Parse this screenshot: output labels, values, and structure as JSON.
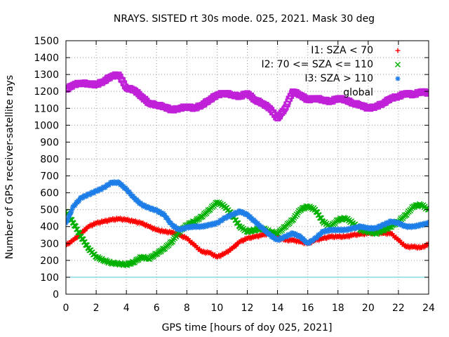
{
  "chart_data": {
    "type": "scatter",
    "title": "NRAYS. SISTED rt 30s mode. 025, 2021. Mask 30 deg",
    "xlabel": "GPS time [hours of doy 025, 2021]",
    "ylabel": "Number of GPS receiver-satellite rays",
    "xlim": [
      0,
      24
    ],
    "ylim": [
      0,
      1500
    ],
    "xticks": [
      0,
      2,
      4,
      6,
      8,
      10,
      12,
      14,
      16,
      18,
      20,
      22,
      24
    ],
    "yticks": [
      0,
      100,
      200,
      300,
      400,
      500,
      600,
      700,
      800,
      900,
      1000,
      1100,
      1200,
      1300,
      1400,
      1500
    ],
    "grid": true,
    "legend_position": "top-right",
    "threshold_line": {
      "y": 100,
      "color": "#4fd1e0"
    },
    "series": [
      {
        "name": "I1: SZA < 70",
        "marker": "+",
        "color": "#ff0000",
        "x": [
          0,
          0.5,
          1,
          1.5,
          2,
          2.5,
          3,
          3.5,
          4,
          4.5,
          5,
          5.5,
          6,
          6.5,
          7,
          7.5,
          8,
          8.5,
          9,
          9.5,
          10,
          10.5,
          11,
          11.5,
          12,
          12.5,
          13,
          13.5,
          14,
          14.5,
          15,
          15.5,
          16,
          16.5,
          17,
          17.5,
          18,
          18.5,
          19,
          19.5,
          20,
          20.5,
          21,
          21.5,
          22,
          22.5,
          23,
          23.5,
          24
        ],
        "y": [
          290,
          320,
          360,
          400,
          420,
          430,
          440,
          445,
          440,
          430,
          420,
          400,
          380,
          370,
          365,
          350,
          330,
          290,
          250,
          245,
          220,
          240,
          270,
          310,
          330,
          340,
          350,
          360,
          340,
          320,
          320,
          310,
          300,
          320,
          330,
          340,
          340,
          340,
          350,
          355,
          360,
          365,
          360,
          360,
          320,
          280,
          280,
          275,
          295
        ]
      },
      {
        "name": "I2: 70 <= SZA <= 110",
        "marker": "x",
        "color": "#00b000",
        "x": [
          0,
          0.5,
          1,
          1.5,
          2,
          2.5,
          3,
          3.5,
          4,
          4.5,
          5,
          5.5,
          6,
          6.5,
          7,
          7.5,
          8,
          8.5,
          9,
          9.5,
          10,
          10.5,
          11,
          11.5,
          12,
          12.5,
          13,
          13.5,
          14,
          14.5,
          15,
          15.5,
          16,
          16.5,
          17,
          17.5,
          18,
          18.5,
          19,
          19.5,
          20,
          20.5,
          21,
          21.5,
          22,
          22.5,
          23,
          23.5,
          24
        ],
        "y": [
          490,
          420,
          340,
          270,
          220,
          200,
          185,
          180,
          175,
          190,
          220,
          210,
          240,
          270,
          310,
          370,
          410,
          430,
          460,
          500,
          545,
          520,
          470,
          400,
          370,
          380,
          390,
          370,
          360,
          400,
          440,
          500,
          520,
          500,
          430,
          400,
          440,
          450,
          420,
          380,
          370,
          360,
          380,
          400,
          430,
          470,
          520,
          530,
          500
        ]
      },
      {
        "name": "I3: SZA > 110",
        "marker": "*",
        "color": "#1e7ee8",
        "x": [
          0,
          0.5,
          1,
          1.5,
          2,
          2.5,
          3,
          3.5,
          4,
          4.5,
          5,
          5.5,
          6,
          6.5,
          7,
          7.5,
          8,
          8.5,
          9,
          9.5,
          10,
          10.5,
          11,
          11.5,
          12,
          12.5,
          13,
          13.5,
          14,
          14.5,
          15,
          15.5,
          16,
          16.5,
          17,
          17.5,
          18,
          18.5,
          19,
          19.5,
          20,
          20.5,
          21,
          21.5,
          22,
          22.5,
          23,
          23.5,
          24
        ],
        "y": [
          420,
          520,
          570,
          590,
          610,
          630,
          660,
          660,
          620,
          570,
          530,
          510,
          495,
          470,
          410,
          380,
          395,
          400,
          400,
          410,
          420,
          450,
          470,
          490,
          470,
          430,
          390,
          350,
          320,
          340,
          360,
          340,
          300,
          330,
          370,
          380,
          380,
          380,
          390,
          400,
          390,
          390,
          410,
          430,
          420,
          400,
          400,
          410,
          420
        ]
      },
      {
        "name": "global",
        "marker": "square",
        "color": "#c020d8",
        "x": [
          0,
          0.5,
          1,
          1.5,
          2,
          2.5,
          3,
          3.5,
          4,
          4.5,
          5,
          5.5,
          6,
          6.5,
          7,
          7.5,
          8,
          8.5,
          9,
          9.5,
          10,
          10.5,
          11,
          11.5,
          12,
          12.5,
          13,
          13.5,
          14,
          14.5,
          15,
          15.5,
          16,
          16.5,
          17,
          17.5,
          18,
          18.5,
          19,
          19.5,
          20,
          20.5,
          21,
          21.5,
          22,
          22.5,
          23,
          23.5,
          24
        ],
        "y": [
          1210,
          1240,
          1250,
          1245,
          1240,
          1260,
          1290,
          1300,
          1220,
          1210,
          1170,
          1130,
          1120,
          1110,
          1090,
          1100,
          1110,
          1100,
          1120,
          1150,
          1180,
          1190,
          1180,
          1170,
          1190,
          1150,
          1130,
          1100,
          1040,
          1100,
          1200,
          1180,
          1150,
          1160,
          1150,
          1140,
          1160,
          1150,
          1130,
          1120,
          1100,
          1110,
          1130,
          1160,
          1170,
          1190,
          1180,
          1200,
          1190
        ]
      }
    ]
  }
}
